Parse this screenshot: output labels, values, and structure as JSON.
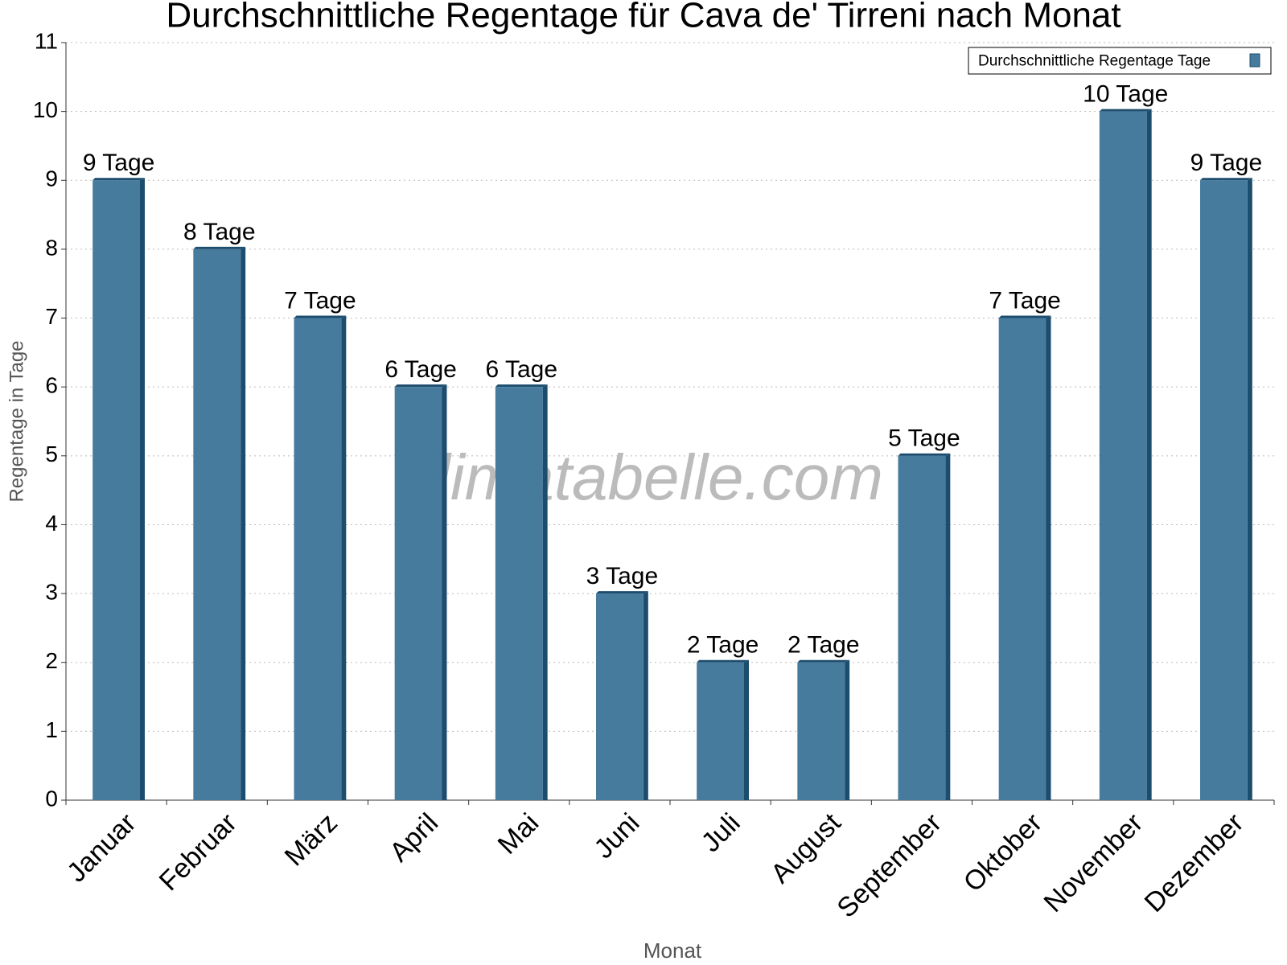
{
  "chart_data": {
    "type": "bar",
    "title": "Durchschnittliche Regentage für Cava de' Tirreni nach Monat",
    "x_label": "Monat",
    "y_label": "Regentage in Tage",
    "watermark": "klimatabelle.com",
    "categories": [
      "Januar",
      "Februar",
      "März",
      "April",
      "Mai",
      "Juni",
      "Juli",
      "August",
      "September",
      "Oktober",
      "November",
      "Dezember"
    ],
    "series": [
      {
        "name": "Durchschnittliche Regentage Tage",
        "color": "#467b9e",
        "values": [
          9,
          8,
          7,
          6,
          6,
          3,
          2,
          2,
          5,
          7,
          10,
          9
        ],
        "value_labels": [
          "9 Tage",
          "8 Tage",
          "7 Tage",
          "6 Tage",
          "6 Tage",
          "3 Tage",
          "2 Tage",
          "2 Tage",
          "5 Tage",
          "7 Tage",
          "10 Tage",
          "9 Tage"
        ]
      }
    ],
    "ylim": [
      0,
      11
    ],
    "yticks": [
      0,
      1,
      2,
      3,
      4,
      5,
      6,
      7,
      8,
      9,
      10,
      11
    ],
    "grid": true,
    "legend": "top-right"
  }
}
